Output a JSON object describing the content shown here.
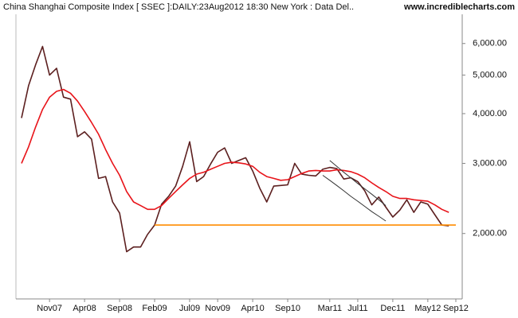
{
  "chart_data": {
    "type": "line",
    "title": "China Shanghai Composite Index [ SSEC ]:DAILY:23Aug2012 18:30 New York : Data Del..",
    "source": "www.incrediblecharts.com",
    "categories": [
      null,
      null,
      null,
      null,
      "Nov07",
      null,
      null,
      null,
      null,
      "Apr08",
      null,
      null,
      null,
      null,
      "Sep08",
      null,
      null,
      null,
      null,
      "Feb09",
      null,
      null,
      null,
      null,
      "Jul09",
      null,
      null,
      null,
      "Nov09",
      null,
      null,
      null,
      null,
      "Apr10",
      null,
      null,
      null,
      null,
      "Sep10",
      null,
      null,
      null,
      null,
      null,
      "Mar11",
      null,
      null,
      null,
      "Jul11",
      null,
      null,
      null,
      null,
      "Dec11",
      null,
      null,
      null,
      null,
      "May12",
      null,
      null,
      null,
      "Sep12"
    ],
    "y_axis_side": "right",
    "log_scale": true,
    "ylim": [
      1370,
      7370
    ],
    "yticks": [
      {
        "value": 2000,
        "label": "2,000.00"
      },
      {
        "value": 3000,
        "label": "3,000.00"
      },
      {
        "value": 4000,
        "label": "4,000.00"
      },
      {
        "value": 5000,
        "label": "5,000.00"
      },
      {
        "value": 6000,
        "label": "6,000.00"
      }
    ],
    "series": [
      {
        "color": "#5c1f1f",
        "width": 1.6,
        "values": [
          3900,
          4700,
          5300,
          5900,
          5000,
          5200,
          4400,
          4350,
          3500,
          3600,
          3450,
          2750,
          2780,
          2400,
          2250,
          1800,
          1850,
          1850,
          1990,
          2100,
          2370,
          2480,
          2630,
          2950,
          3400,
          2700,
          2780,
          2990,
          3200,
          3280,
          3000,
          3050,
          3100,
          2870,
          2600,
          2400,
          2630,
          2640,
          2650,
          3000,
          2820,
          2800,
          2790,
          2900,
          2930,
          2910,
          2740,
          2760,
          2700,
          2560,
          2360,
          2470,
          2330,
          2200,
          2290,
          2430,
          2260,
          2400,
          2370,
          2230,
          2100,
          2090,
          null
        ]
      },
      {
        "color": "#e8141a",
        "width": 1.6,
        "values": [
          3000,
          3300,
          3700,
          4100,
          4400,
          4550,
          4600,
          4500,
          4300,
          4050,
          3800,
          3550,
          3250,
          3000,
          2800,
          2550,
          2400,
          2350,
          2300,
          2300,
          2350,
          2450,
          2550,
          2650,
          2750,
          2820,
          2850,
          2900,
          2950,
          3000,
          3020,
          3010,
          2990,
          2950,
          2850,
          2780,
          2750,
          2720,
          2730,
          2780,
          2830,
          2870,
          2880,
          2870,
          2870,
          2890,
          2880,
          2860,
          2820,
          2760,
          2680,
          2610,
          2550,
          2480,
          2450,
          2450,
          2430,
          2420,
          2410,
          2360,
          2300,
          2260,
          null
        ]
      },
      {
        "color": "#ff8c00",
        "width": 1.6,
        "values": [
          null,
          null,
          null,
          null,
          null,
          null,
          null,
          null,
          null,
          null,
          null,
          null,
          null,
          null,
          null,
          null,
          null,
          null,
          null,
          2100,
          2100,
          2100,
          2100,
          2100,
          2100,
          2100,
          2100,
          2100,
          2100,
          2100,
          2100,
          2100,
          2100,
          2100,
          2100,
          2100,
          2100,
          2100,
          2100,
          2100,
          2100,
          2100,
          2100,
          2100,
          2100,
          2100,
          2100,
          2100,
          2100,
          2100,
          2100,
          2100,
          2100,
          2100,
          2100,
          2100,
          2100,
          2100,
          2100,
          2100,
          2100,
          2100,
          2100
        ]
      },
      {
        "color": "#333333",
        "width": 1,
        "values": [
          null,
          null,
          null,
          null,
          null,
          null,
          null,
          null,
          null,
          null,
          null,
          null,
          null,
          null,
          null,
          null,
          null,
          null,
          null,
          null,
          null,
          null,
          null,
          null,
          null,
          null,
          null,
          null,
          null,
          null,
          null,
          null,
          null,
          null,
          null,
          null,
          null,
          null,
          null,
          null,
          null,
          null,
          null,
          null,
          3050,
          2950,
          2850,
          2760,
          2670,
          2590,
          2510,
          2430,
          2350,
          null,
          null,
          null,
          null,
          null,
          null,
          null,
          null,
          null,
          null
        ]
      },
      {
        "color": "#333333",
        "width": 1,
        "values": [
          null,
          null,
          null,
          null,
          null,
          null,
          null,
          null,
          null,
          null,
          null,
          null,
          null,
          null,
          null,
          null,
          null,
          null,
          null,
          null,
          null,
          null,
          null,
          null,
          null,
          null,
          null,
          null,
          null,
          null,
          null,
          null,
          null,
          null,
          null,
          null,
          null,
          null,
          null,
          null,
          null,
          null,
          null,
          2800,
          2720,
          2640,
          2560,
          2480,
          2410,
          2340,
          2270,
          2210,
          2150,
          null,
          null,
          null,
          null,
          null,
          null,
          null,
          null,
          null,
          null
        ]
      }
    ]
  }
}
